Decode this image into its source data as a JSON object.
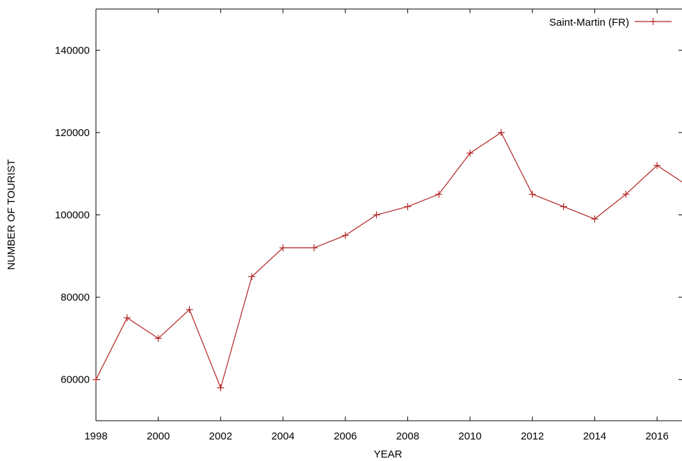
{
  "chart_data": {
    "type": "line",
    "xlabel": "YEAR",
    "ylabel": "NUMBER OF TOURIST",
    "xlim": [
      1998,
      2016.8
    ],
    "ylim": [
      50000,
      150000
    ],
    "x_ticks": [
      1998,
      2000,
      2002,
      2004,
      2006,
      2008,
      2010,
      2012,
      2014,
      2016
    ],
    "y_ticks": [
      60000,
      80000,
      100000,
      120000,
      140000
    ],
    "grid": false,
    "legend_position": "top-right",
    "colors": {
      "series": "#b22222",
      "axis": "#000000"
    },
    "series": [
      {
        "name": "Saint-Martin (FR)",
        "x": [
          1998,
          1999,
          2000,
          2001,
          2002,
          2003,
          2004,
          2005,
          2006,
          2007,
          2008,
          2009,
          2010,
          2011,
          2012,
          2013,
          2014,
          2015,
          2016,
          2017
        ],
        "values": [
          60000,
          75000,
          70000,
          77000,
          58000,
          85000,
          92000,
          92000,
          95000,
          100000,
          102000,
          105000,
          115000,
          120000,
          105000,
          102000,
          99000,
          105000,
          112000,
          107000
        ]
      }
    ]
  }
}
